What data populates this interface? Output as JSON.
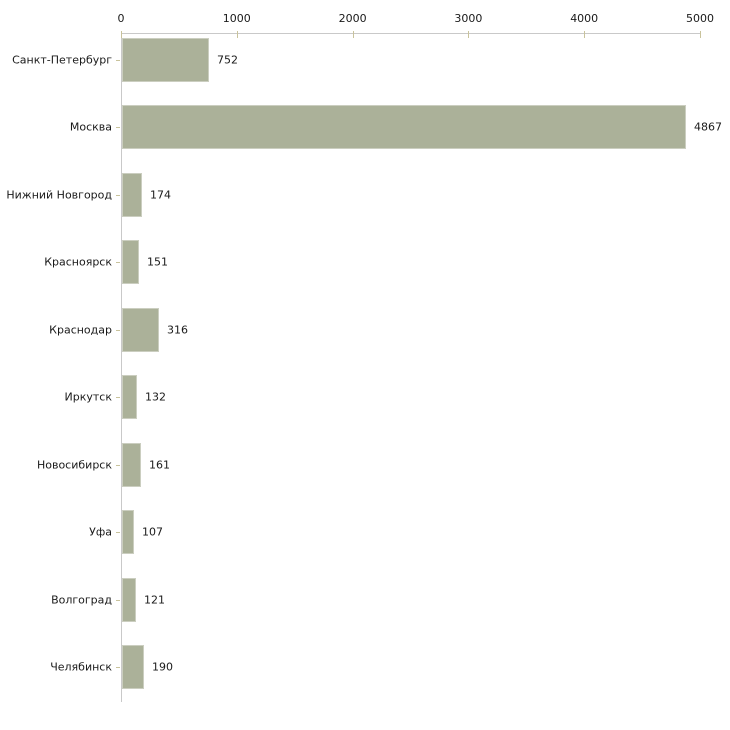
{
  "chart_data": {
    "type": "bar",
    "orientation": "horizontal",
    "title": "",
    "xlabel": "",
    "ylabel": "",
    "categories": [
      "Санкт-Петербург",
      "Москва",
      "Нижний Новгород",
      "Красноярск",
      "Краснодар",
      "Иркутск",
      "Новосибирск",
      "Уфа",
      "Волгоград",
      "Челябинск"
    ],
    "values": [
      752,
      4867,
      174,
      151,
      316,
      132,
      161,
      107,
      121,
      190
    ],
    "value_labels": [
      "752",
      "4867",
      "174",
      "151",
      "316",
      "132",
      "161",
      "107",
      "121",
      "190"
    ],
    "x_ticks": [
      "0",
      "1000",
      "2000",
      "3000",
      "4000",
      "5000"
    ],
    "x_tick_values": [
      0,
      1000,
      2000,
      3000,
      4000,
      5000
    ],
    "xlim": [
      0,
      5000
    ],
    "grid": false,
    "legend_position": "none",
    "x_axis_position": "top",
    "colors": {
      "bar_fill": "#abb199",
      "axis_line": "#c9c9c9",
      "tick_mark": "#c9c39c",
      "label_text": "#1a1a1a",
      "background": "#ffffff"
    }
  }
}
